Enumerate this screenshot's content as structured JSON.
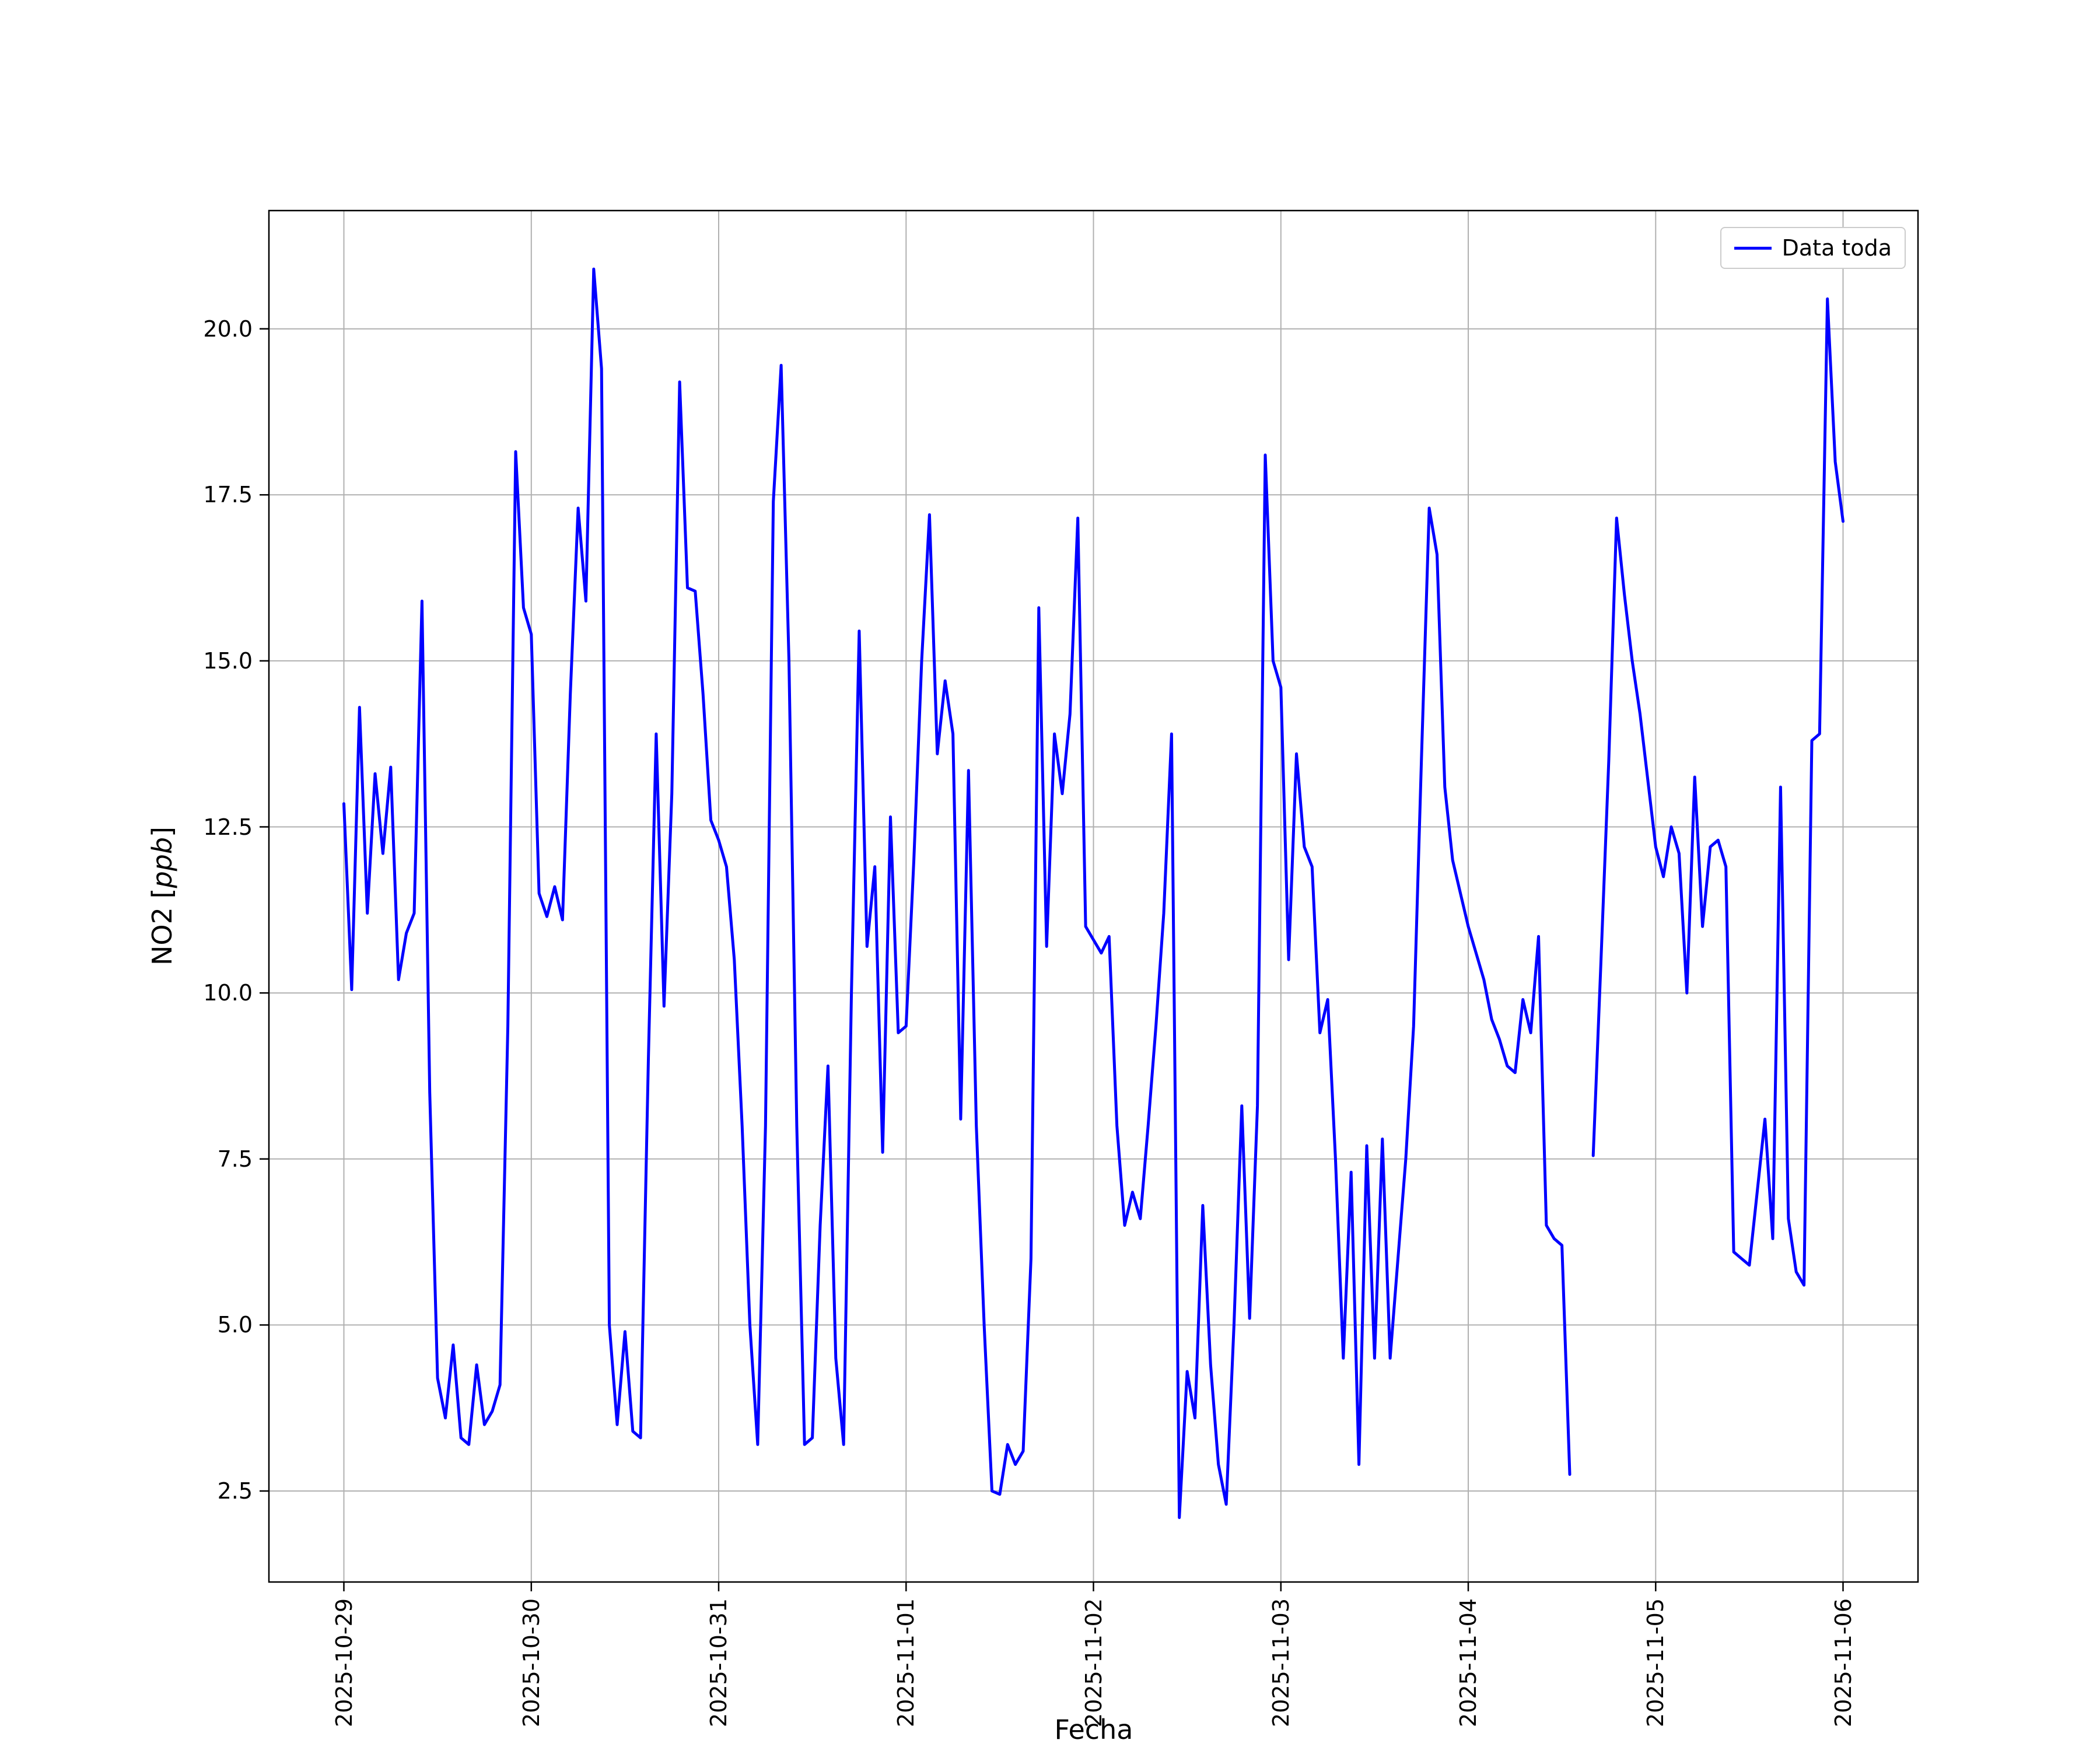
{
  "figure": {
    "xlabel": "Fecha",
    "ylabel_prefix": "NO2 [",
    "ylabel_math": "ppb",
    "ylabel_suffix": "]",
    "legend": {
      "label": "Data toda"
    },
    "colors": {
      "line": "#0000ff",
      "grid": "#b0b0b0",
      "spine": "#000000",
      "background": "#ffffff",
      "legend_edge": "#cccccc"
    }
  },
  "chart_data": {
    "type": "line",
    "title": "",
    "xlabel": "Fecha",
    "ylabel": "NO2 [ppb]",
    "grid": true,
    "legend_position": "upper right",
    "x_start": "2025-10-29 00:00",
    "x_step_hours": 1,
    "xlim_hours": [
      -9.6,
      201.6
    ],
    "ylim": [
      1.13,
      21.78
    ],
    "y_ticks": [
      2.5,
      5.0,
      7.5,
      10.0,
      12.5,
      15.0,
      17.5,
      20.0
    ],
    "y_tick_labels": [
      "2.5",
      "5.0",
      "7.5",
      "10.0",
      "12.5",
      "15.0",
      "17.5",
      "20.0"
    ],
    "x_tick_hours": [
      0,
      24,
      48,
      72,
      96,
      120,
      144,
      168,
      192
    ],
    "x_tick_labels": [
      "2025-10-29",
      "2025-10-30",
      "2025-10-31",
      "2025-11-01",
      "2025-11-02",
      "2025-11-03",
      "2025-11-04",
      "2025-11-05",
      "2025-11-06"
    ],
    "series": [
      {
        "name": "Data toda",
        "color": "#0000ff",
        "values": [
          12.85,
          10.05,
          14.3,
          11.2,
          13.3,
          12.1,
          13.4,
          10.2,
          10.9,
          11.2,
          15.9,
          8.5,
          4.2,
          3.6,
          4.7,
          3.3,
          3.2,
          4.4,
          3.5,
          3.7,
          4.1,
          9.5,
          18.15,
          15.8,
          15.4,
          11.5,
          11.15,
          11.6,
          11.1,
          14.5,
          17.3,
          15.9,
          20.9,
          19.4,
          5.0,
          3.5,
          4.9,
          3.4,
          3.3,
          9.0,
          13.9,
          9.8,
          13.0,
          19.2,
          16.1,
          16.05,
          14.5,
          12.6,
          12.3,
          11.9,
          10.5,
          8.0,
          5.0,
          3.2,
          8.0,
          17.4,
          19.45,
          15.0,
          8.0,
          3.2,
          3.3,
          6.5,
          8.9,
          4.5,
          3.2,
          10.0,
          15.45,
          10.7,
          11.9,
          7.6,
          12.65,
          9.4,
          9.5,
          12.0,
          15.0,
          17.2,
          13.6,
          14.7,
          13.9,
          8.1,
          13.35,
          8.0,
          5.0,
          2.5,
          2.45,
          3.2,
          2.9,
          3.1,
          6.0,
          15.8,
          10.7,
          13.9,
          13.0,
          14.2,
          17.15,
          11.0,
          10.8,
          10.6,
          10.85,
          8.0,
          6.5,
          7.0,
          6.6,
          8.0,
          9.5,
          11.2,
          13.9,
          2.1,
          4.3,
          3.6,
          6.8,
          4.4,
          2.9,
          2.3,
          5.0,
          8.3,
          5.1,
          8.3,
          18.1,
          15.0,
          14.6,
          10.5,
          13.6,
          12.2,
          11.9,
          9.4,
          9.9,
          7.5,
          4.5,
          7.3,
          2.9,
          7.7,
          4.5,
          7.8,
          4.5,
          6.0,
          7.5,
          9.5,
          13.5,
          17.3,
          16.6,
          13.1,
          12.0,
          11.5,
          11.0,
          10.6,
          10.2,
          9.6,
          9.3,
          8.9,
          8.8,
          9.9,
          9.4,
          10.85,
          6.5,
          6.3,
          6.2,
          2.75,
          null,
          null,
          7.55,
          10.5,
          13.5,
          17.15,
          16.0,
          15.0,
          14.2,
          13.2,
          12.2,
          11.75,
          12.5,
          12.1,
          10.0,
          13.25,
          11.0,
          12.2,
          12.3,
          11.9,
          6.1,
          6.0,
          5.9,
          7.0,
          8.1,
          6.3,
          13.1,
          6.6,
          5.8,
          5.6,
          13.8,
          13.9,
          20.45,
          18.0,
          17.1
        ]
      }
    ]
  }
}
